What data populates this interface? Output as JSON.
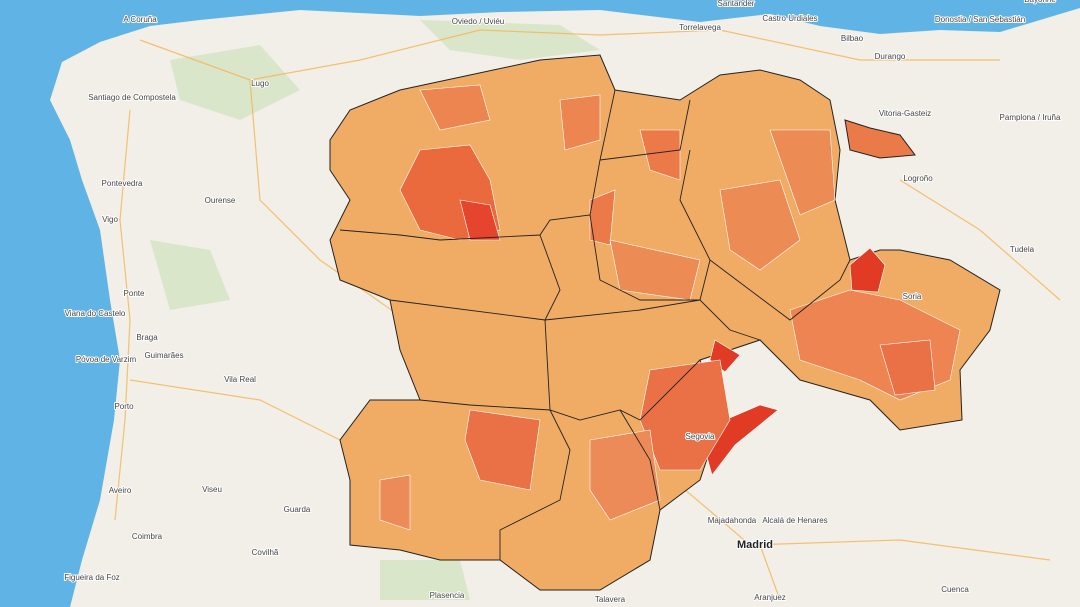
{
  "places": [
    {
      "name": "A Coruña"
    },
    {
      "name": "Oviedo / Uviéu"
    },
    {
      "name": "Santander"
    },
    {
      "name": "Torrelavega"
    },
    {
      "name": "Castro Urdiales"
    },
    {
      "name": "Bilbao"
    },
    {
      "name": "Donostia / San Sebastián"
    },
    {
      "name": "Bayonne"
    },
    {
      "name": "Santiago de Compostela"
    },
    {
      "name": "Lugo"
    },
    {
      "name": "Durango"
    },
    {
      "name": "Vitoria-Gasteiz"
    },
    {
      "name": "Pamplona / Iruña"
    },
    {
      "name": "Pontevedra"
    },
    {
      "name": "Ourense"
    },
    {
      "name": "Logroño"
    },
    {
      "name": "Vigo"
    },
    {
      "name": "Tudela"
    },
    {
      "name": "Ponte"
    },
    {
      "name": "Soria"
    },
    {
      "name": "Viana do Castelo"
    },
    {
      "name": "Braga"
    },
    {
      "name": "Póvoa de Varzim"
    },
    {
      "name": "Guimarães"
    },
    {
      "name": "Vila Real"
    },
    {
      "name": "Porto"
    },
    {
      "name": "Segovia"
    },
    {
      "name": "Aveiro"
    },
    {
      "name": "Viseu"
    },
    {
      "name": "Guarda"
    },
    {
      "name": "Majadahonda"
    },
    {
      "name": "Alcalá de Henares"
    },
    {
      "name": "Madrid"
    },
    {
      "name": "Coimbra"
    },
    {
      "name": "Covilhã"
    },
    {
      "name": "Figueira da Foz"
    },
    {
      "name": "Plasencia"
    },
    {
      "name": "Talavera"
    },
    {
      "name": "Aranjuez"
    },
    {
      "name": "Cuenca"
    }
  ]
}
